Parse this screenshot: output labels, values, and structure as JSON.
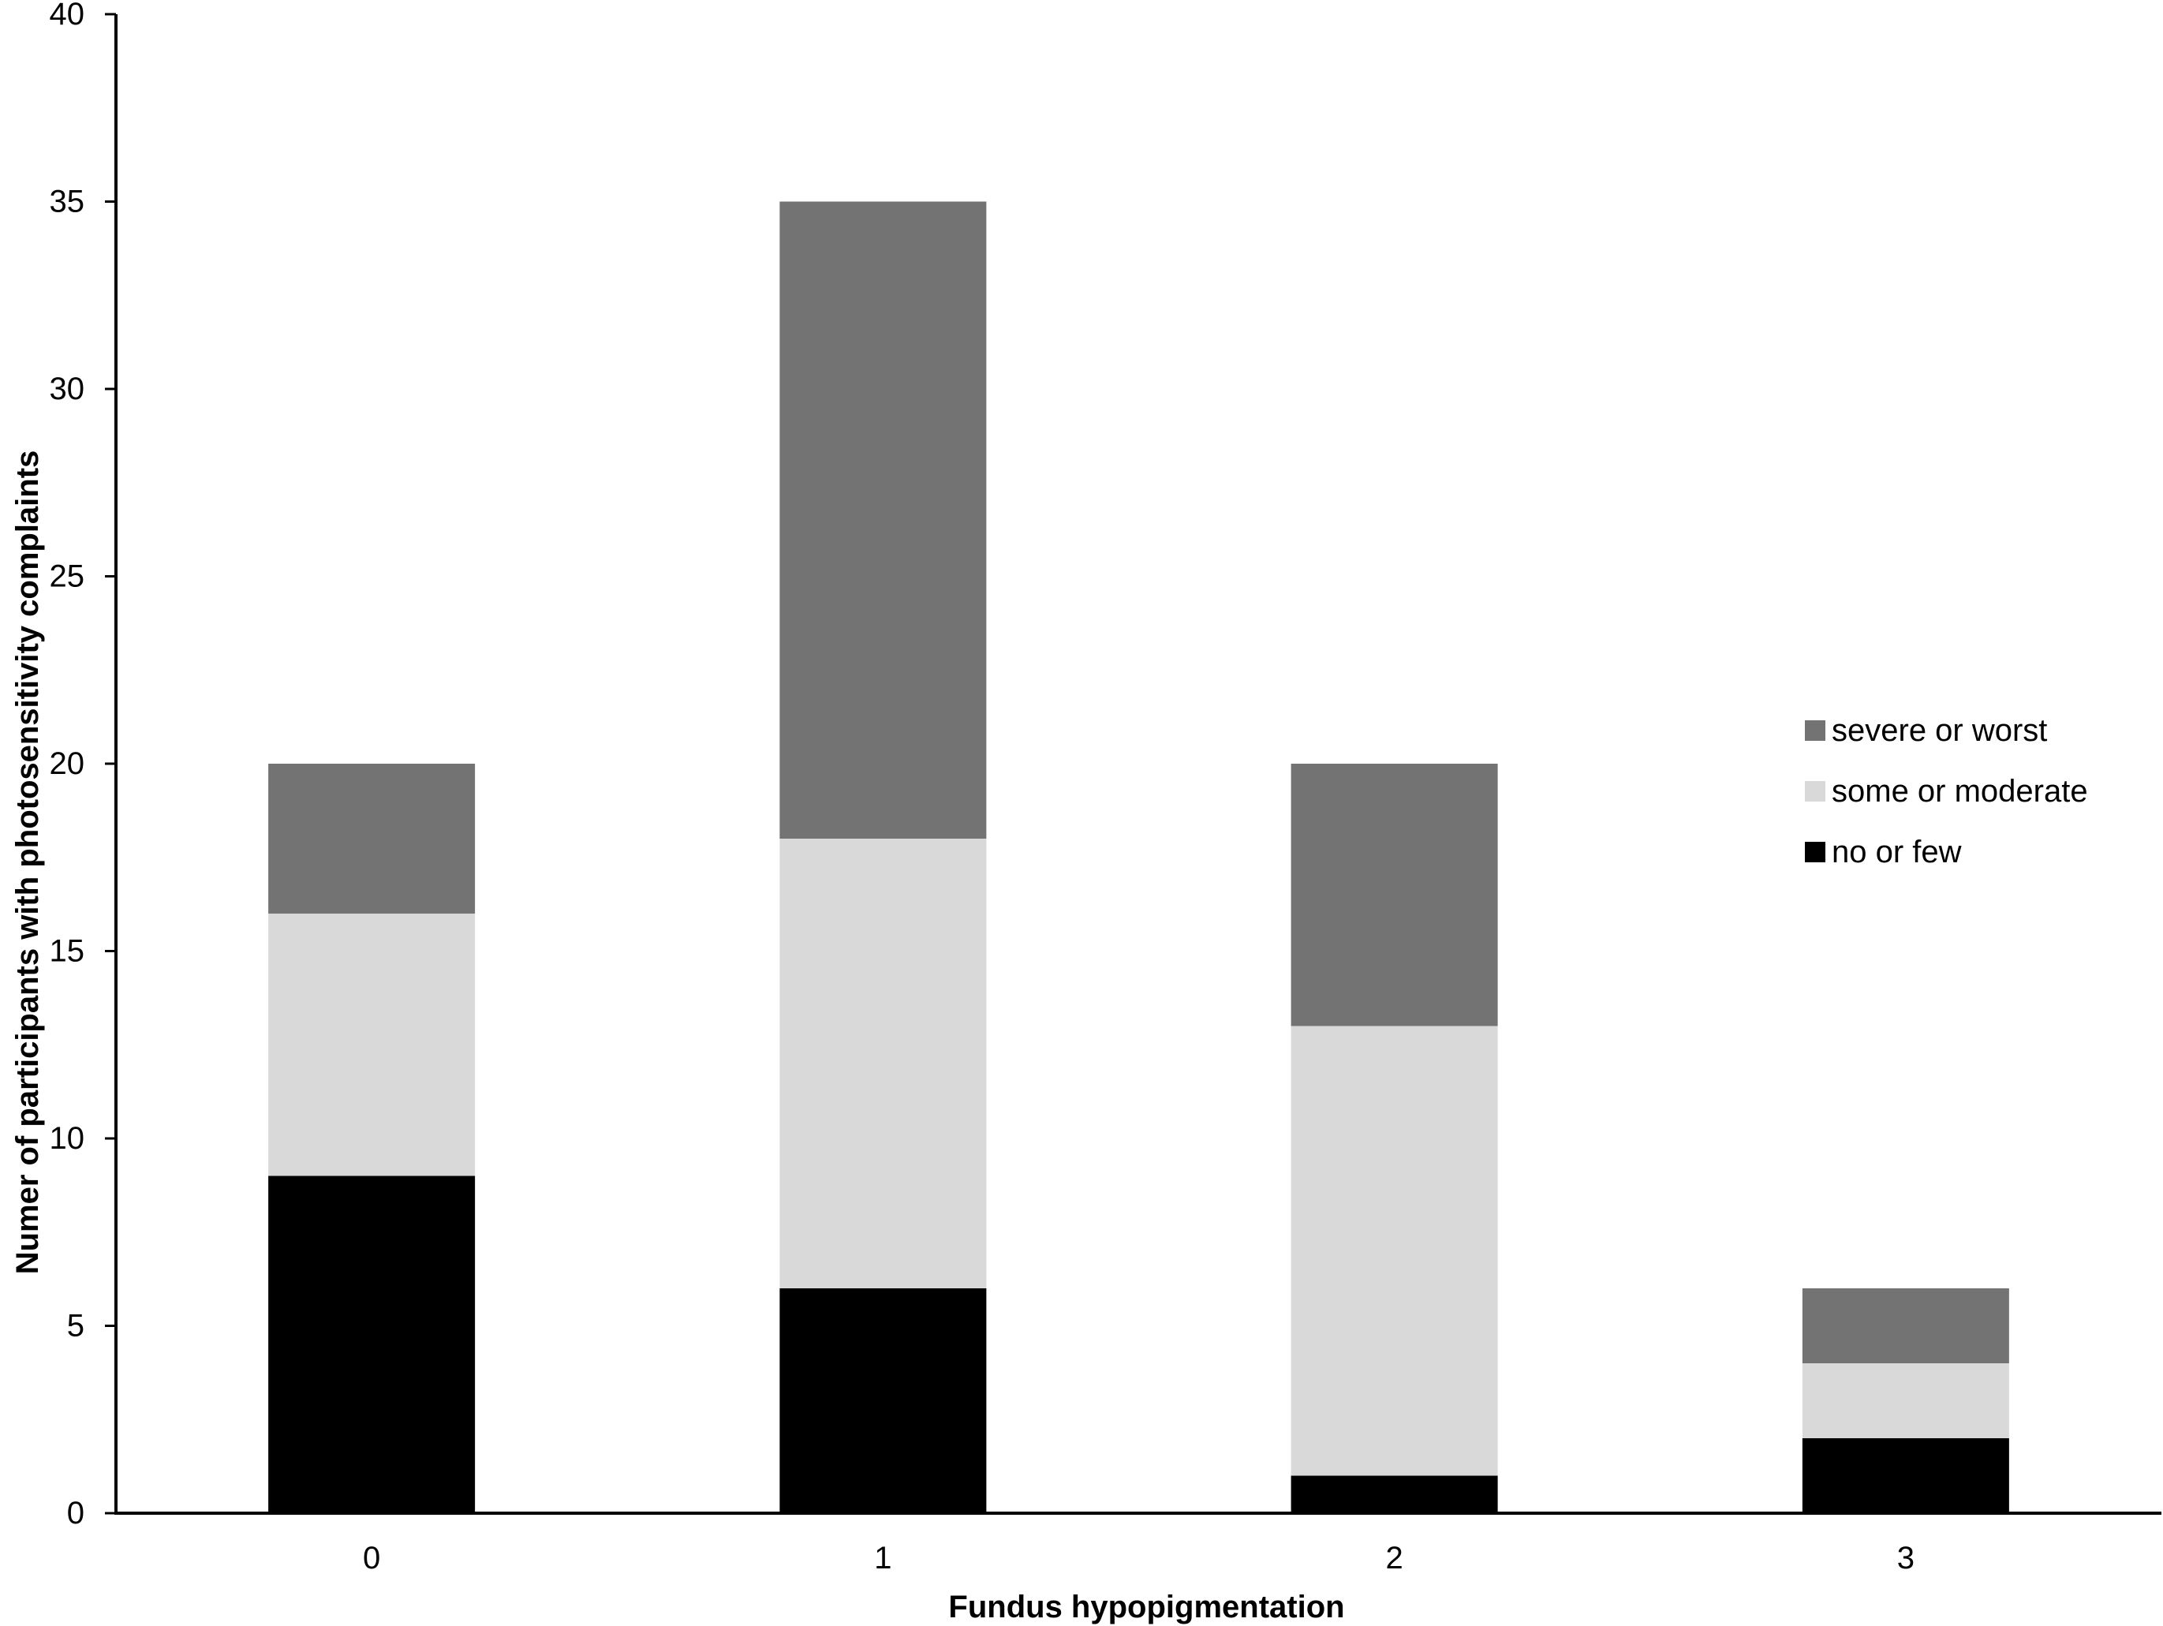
{
  "chart_data": {
    "type": "bar",
    "stacked": true,
    "categories": [
      "0",
      "1",
      "2",
      "3"
    ],
    "series": [
      {
        "name": "no or few",
        "values": [
          9,
          6,
          1,
          2
        ],
        "color": "#000000"
      },
      {
        "name": "some or moderate",
        "values": [
          7,
          12,
          12,
          2
        ],
        "color": "#d9d9d9"
      },
      {
        "name": "severe or worst",
        "values": [
          4,
          17,
          7,
          2
        ],
        "color": "#737373"
      }
    ],
    "title": "",
    "xlabel": "Fundus hypopigmentation",
    "ylabel": "Numer of participants with photosensitivity complaints",
    "ylim": [
      0,
      40
    ],
    "yticks": [
      "0",
      "5",
      "10",
      "15",
      "20",
      "25",
      "30",
      "35",
      "40"
    ],
    "grid": false,
    "legend": {
      "position": "right",
      "order": [
        "severe or worst",
        "some or moderate",
        "no or few"
      ]
    }
  }
}
